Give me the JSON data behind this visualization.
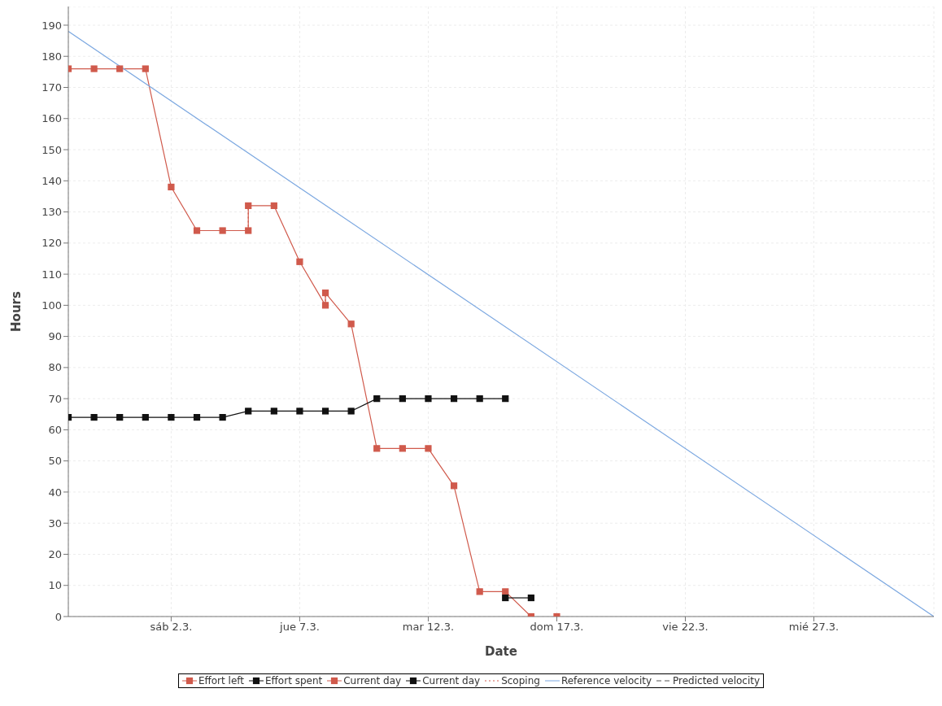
{
  "chart_data": {
    "type": "line",
    "xlabel": "Date",
    "ylabel": "Hours",
    "xlim": [
      "--02-26",
      "--03-31T16:00"
    ],
    "xticks": [
      {
        "value": "--03-02",
        "label": "sáb 2.3."
      },
      {
        "value": "--03-07",
        "label": "jue 7.3."
      },
      {
        "value": "--03-12",
        "label": "mar 12.3."
      },
      {
        "value": "--03-17",
        "label": "dom 17.3."
      },
      {
        "value": "--03-22",
        "label": "vie 22.3."
      },
      {
        "value": "--03-27",
        "label": "mié 27.3."
      }
    ],
    "ylim": [
      0,
      196
    ],
    "yticks": [
      0,
      10,
      20,
      30,
      40,
      50,
      60,
      70,
      80,
      90,
      100,
      110,
      120,
      130,
      140,
      150,
      160,
      170,
      180,
      190
    ],
    "grid": true,
    "legend": "bottom",
    "series": [
      {
        "name": "Effort left",
        "color": "#d05a4c",
        "marker": "square",
        "line_style": "solid",
        "x": [
          "--02-26",
          "--02-27",
          "--02-28",
          "--03-01",
          "--03-02",
          "--03-03",
          "--03-04",
          "--03-05",
          "--03-05",
          "--03-06",
          "--03-07",
          "--03-08",
          "--03-08",
          "--03-09",
          "--03-10",
          "--03-11",
          "--03-12",
          "--03-13",
          "--03-14",
          "--03-15",
          "--03-16"
        ],
        "values": [
          176,
          176,
          176,
          176,
          138,
          124,
          124,
          124,
          132,
          132,
          114,
          100,
          104,
          94,
          54,
          54,
          54,
          42,
          8,
          8,
          0
        ]
      },
      {
        "name": "Effort spent",
        "color": "#111111",
        "marker": "square",
        "line_style": "solid",
        "x": [
          "--02-26",
          "--02-27",
          "--02-28",
          "--03-01",
          "--03-02",
          "--03-03",
          "--03-04",
          "--03-05",
          "--03-06",
          "--03-07",
          "--03-08",
          "--03-09",
          "--03-10",
          "--03-11",
          "--03-12",
          "--03-13",
          "--03-14",
          "--03-15"
        ],
        "values": [
          64,
          64,
          64,
          64,
          64,
          64,
          64,
          66,
          66,
          66,
          66,
          66,
          70,
          70,
          70,
          70,
          70,
          70
        ]
      },
      {
        "name": "Current day",
        "color": "#d05a4c",
        "marker": "square",
        "line_style": "solid",
        "x": [
          "--03-17"
        ],
        "values": [
          0
        ]
      },
      {
        "name": "Current day",
        "color": "#111111",
        "marker": "square",
        "line_style": "solid",
        "x": [
          "--03-15",
          "--03-16"
        ],
        "values": [
          6,
          6
        ]
      },
      {
        "name": "Scoping",
        "color": "#d05a4c",
        "marker": "none",
        "line_style": "dotted",
        "x": [
          "--03-05",
          "--03-05"
        ],
        "values": [
          124,
          132
        ]
      },
      {
        "color": "#d05a4c",
        "marker": "none",
        "line_style": "dotted",
        "x": [
          "--03-08",
          "--03-08"
        ],
        "values": [
          100,
          104
        ]
      },
      {
        "name": "Reference velocity",
        "color": "#7ba7e0",
        "marker": "none",
        "line_style": "solid",
        "x": [
          "--02-26",
          "--03-31T16:00"
        ],
        "values": [
          188,
          0
        ]
      },
      {
        "name": "Predicted velocity",
        "color": "#555555",
        "marker": "none",
        "line_style": "dashed"
      }
    ]
  }
}
